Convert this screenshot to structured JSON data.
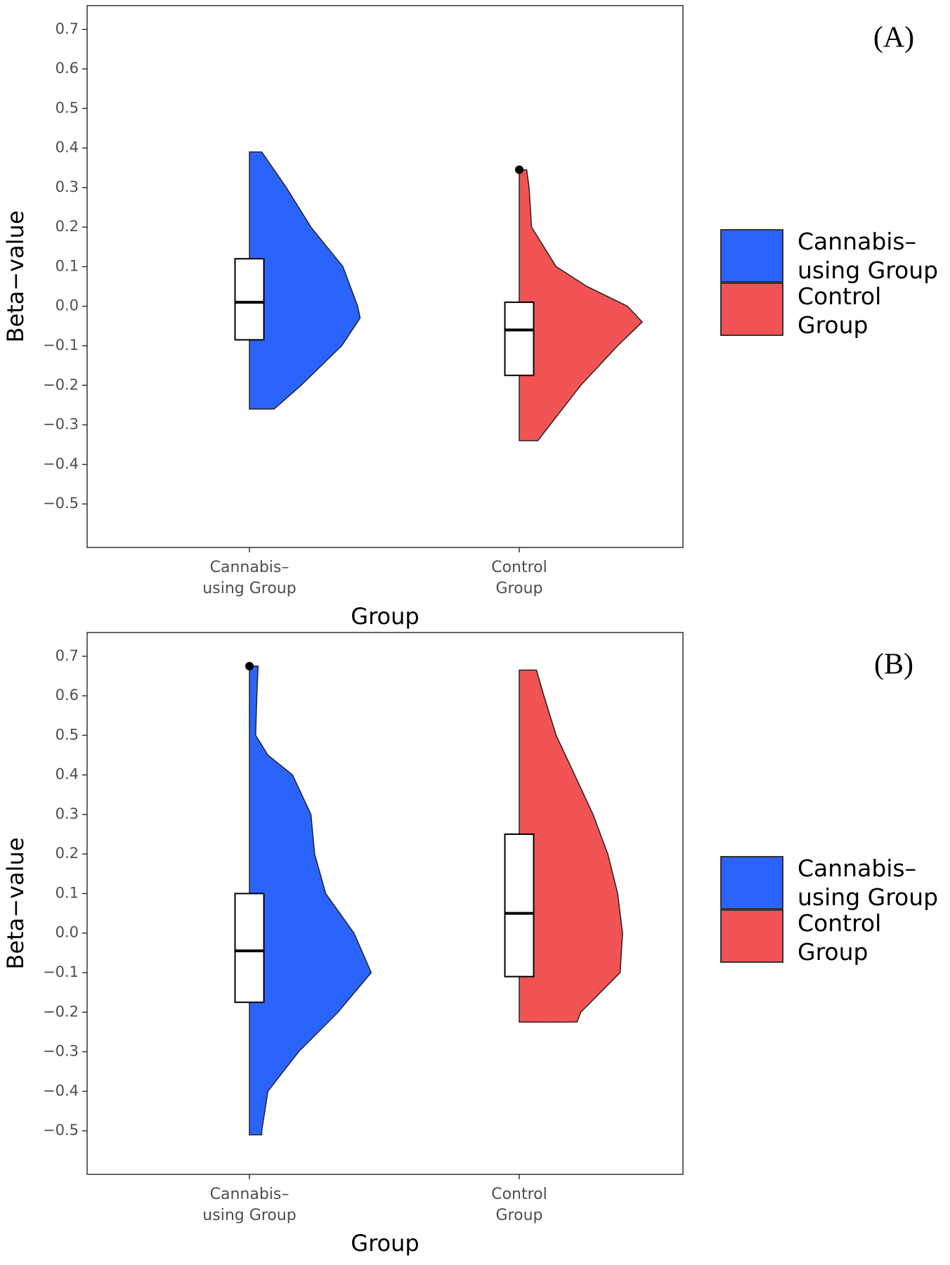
{
  "chart_data": [
    {
      "type": "violin",
      "label": "(A)",
      "x_label": "Group",
      "y_label": "Beta−value",
      "categories": [
        "Cannabis–\nusing Group",
        "Control\nGroup"
      ],
      "ylim": [
        -0.61,
        0.76
      ],
      "yticks": [
        {
          "value": -0.5,
          "label": "−0.5"
        },
        {
          "value": -0.4,
          "label": "−0.4"
        },
        {
          "value": -0.3,
          "label": "−0.3"
        },
        {
          "value": -0.2,
          "label": "−0.2"
        },
        {
          "value": -0.1,
          "label": "−0.1"
        },
        {
          "value": 0,
          "label": "0.0"
        },
        0.1,
        0.2,
        0.3,
        0.4,
        0.5,
        0.6,
        0.7
      ],
      "series": [
        {
          "name": "Cannabis–\nusing Group",
          "color": "#2b64fc",
          "violin": {
            "y": [
              0.39,
              0.3,
              0.2,
              0.1,
              0.0,
              -0.03,
              -0.1,
              -0.2,
              -0.26
            ],
            "width": [
              0.1,
              0.3,
              0.5,
              0.76,
              0.88,
              0.9,
              0.75,
              0.42,
              0.2
            ]
          },
          "box": {
            "q1": -0.085,
            "median": 0.01,
            "q3": 0.12
          },
          "outliers": []
        },
        {
          "name": "Control\nGroup",
          "color": "#f25354",
          "violin": {
            "y": [
              0.345,
              0.3,
              0.2,
              0.1,
              0.05,
              0.0,
              -0.04,
              -0.1,
              -0.2,
              -0.3,
              -0.34
            ],
            "width": [
              0.06,
              0.08,
              0.1,
              0.3,
              0.55,
              0.88,
              1.0,
              0.8,
              0.5,
              0.25,
              0.15
            ]
          },
          "box": {
            "q1": -0.175,
            "median": -0.06,
            "q3": 0.01
          },
          "outliers": [
            0.345
          ]
        }
      ]
    },
    {
      "type": "violin",
      "label": "(B)",
      "x_label": "Group",
      "y_label": "Beta−value",
      "categories": [
        "Cannabis–\nusing Group",
        "Control\nGroup"
      ],
      "ylim": [
        -0.61,
        0.76
      ],
      "yticks": [
        {
          "value": -0.5,
          "label": "−0.5"
        },
        {
          "value": -0.4,
          "label": "−0.4"
        },
        {
          "value": -0.3,
          "label": "−0.3"
        },
        {
          "value": -0.2,
          "label": "−0.2"
        },
        {
          "value": -0.1,
          "label": "−0.1"
        },
        {
          "value": 0,
          "label": "0.0"
        },
        0.1,
        0.2,
        0.3,
        0.4,
        0.5,
        0.6,
        0.7
      ],
      "series": [
        {
          "name": "Cannabis–\nusing Group",
          "color": "#2b64fc",
          "violin": {
            "y": [
              0.675,
              0.6,
              0.5,
              0.45,
              0.4,
              0.3,
              0.2,
              0.1,
              0.0,
              -0.1,
              -0.2,
              -0.3,
              -0.4,
              -0.5,
              -0.51
            ],
            "width": [
              0.07,
              0.06,
              0.05,
              0.15,
              0.35,
              0.5,
              0.53,
              0.62,
              0.85,
              0.99,
              0.72,
              0.4,
              0.15,
              0.1,
              0.1
            ]
          },
          "box": {
            "q1": -0.175,
            "median": -0.045,
            "q3": 0.1
          },
          "outliers": [
            0.675
          ]
        },
        {
          "name": "Control\nGroup",
          "color": "#f25354",
          "violin": {
            "y": [
              0.665,
              0.6,
              0.5,
              0.4,
              0.3,
              0.2,
              0.1,
              0.0,
              -0.1,
              -0.2,
              -0.225
            ],
            "width": [
              0.14,
              0.2,
              0.3,
              0.45,
              0.6,
              0.72,
              0.8,
              0.84,
              0.82,
              0.5,
              0.47
            ]
          },
          "box": {
            "q1": -0.11,
            "median": 0.05,
            "q3": 0.25
          },
          "outliers": []
        }
      ]
    }
  ]
}
